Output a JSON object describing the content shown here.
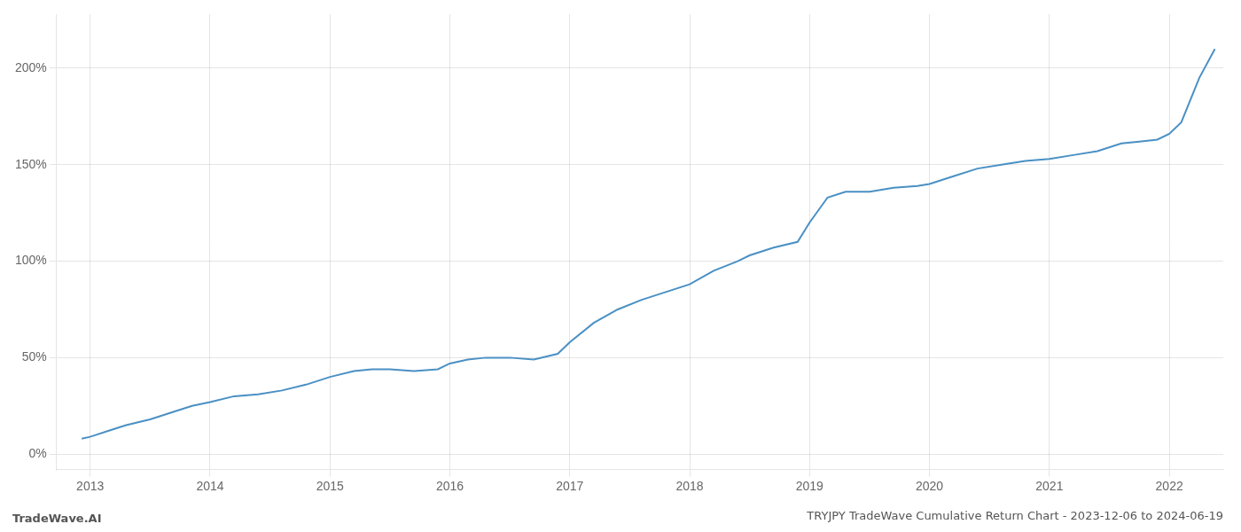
{
  "chart_data": {
    "type": "line",
    "title": "TRYJPY TradeWave Cumulative Return Chart - 2023-12-06 to 2024-06-19",
    "annotations": [
      "TradeWave.AI"
    ],
    "x": [
      2012.93,
      2013.0,
      2013.15,
      2013.3,
      2013.5,
      2013.7,
      2013.85,
      2014.0,
      2014.2,
      2014.4,
      2014.6,
      2014.8,
      2015.0,
      2015.2,
      2015.35,
      2015.5,
      2015.7,
      2015.9,
      2016.0,
      2016.15,
      2016.3,
      2016.5,
      2016.7,
      2016.9,
      2017.0,
      2017.2,
      2017.4,
      2017.6,
      2017.8,
      2018.0,
      2018.2,
      2018.4,
      2018.5,
      2018.7,
      2018.9,
      2019.0,
      2019.15,
      2019.3,
      2019.5,
      2019.7,
      2019.9,
      2020.0,
      2020.2,
      2020.4,
      2020.6,
      2020.8,
      2021.0,
      2021.2,
      2021.4,
      2021.6,
      2021.75,
      2021.9,
      2022.0,
      2022.1,
      2022.25,
      2022.38
    ],
    "values": [
      8,
      9,
      12,
      15,
      18,
      22,
      25,
      27,
      30,
      31,
      33,
      36,
      40,
      43,
      44,
      44,
      43,
      44,
      47,
      49,
      50,
      50,
      49,
      52,
      58,
      68,
      75,
      80,
      84,
      88,
      95,
      100,
      103,
      107,
      110,
      120,
      133,
      136,
      136,
      138,
      139,
      140,
      144,
      148,
      150,
      152,
      153,
      155,
      157,
      161,
      162,
      163,
      166,
      172,
      195,
      210
    ],
    "color": "#4a90c4",
    "xlim": [
      2012.72,
      2022.45
    ],
    "xticks": [
      2013,
      2014,
      2015,
      2016,
      2017,
      2018,
      2019,
      2020,
      2021,
      2022
    ],
    "ylim": [
      -8,
      228
    ],
    "yticks": [
      {
        "value": 0,
        "label": "0%"
      },
      {
        "value": 50,
        "label": "50%"
      },
      {
        "value": 100,
        "label": "100%"
      },
      {
        "value": 150,
        "label": "150%"
      },
      {
        "value": 200,
        "label": "200%"
      }
    ],
    "grid": true
  }
}
